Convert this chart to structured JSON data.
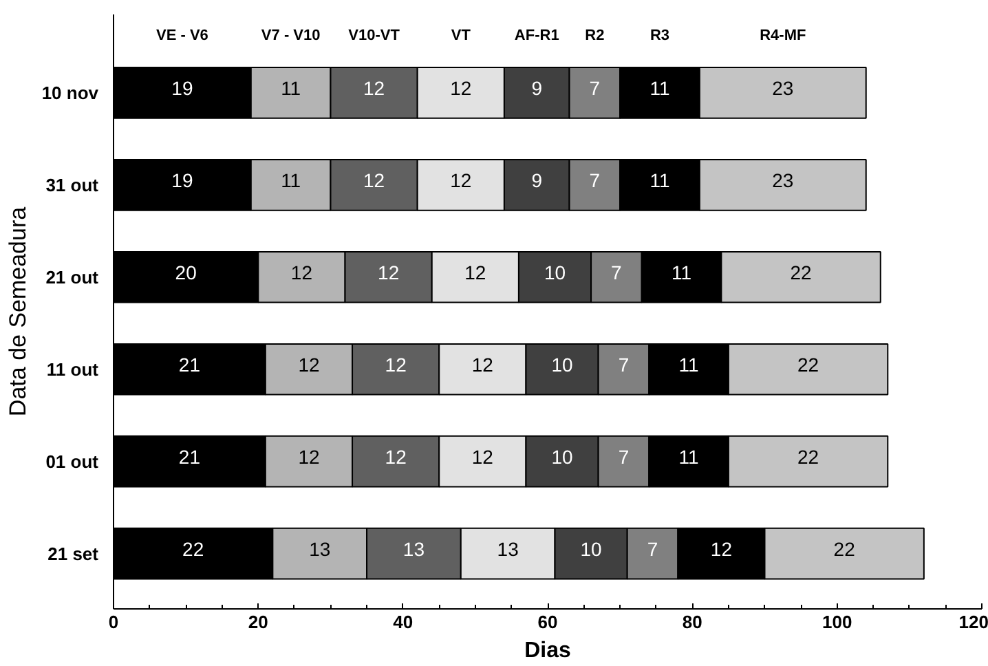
{
  "chart_data": {
    "type": "bar",
    "orientation": "horizontal",
    "stacked": true,
    "data_labels": true,
    "xlabel": "Dias",
    "ylabel": "Data de Semeadura",
    "categories": [
      "10 nov",
      "31 out",
      "21 out",
      "11 out",
      "01 out",
      "21 set"
    ],
    "xlim": [
      0,
      120
    ],
    "xticks": [
      0,
      20,
      40,
      60,
      80,
      100,
      120
    ],
    "grid": false,
    "series": [
      {
        "name": "VE - V6",
        "color": "#000000",
        "values": [
          19,
          19,
          20,
          21,
          21,
          22
        ]
      },
      {
        "name": "V7 - V10",
        "color": "#b4b4b4",
        "values": [
          11,
          11,
          12,
          12,
          12,
          13
        ]
      },
      {
        "name": "V10-VT",
        "color": "#606060",
        "values": [
          12,
          12,
          12,
          12,
          12,
          13
        ]
      },
      {
        "name": "VT",
        "color": "#e2e2e2",
        "values": [
          12,
          12,
          12,
          12,
          12,
          13
        ]
      },
      {
        "name": "AF-R1",
        "color": "#404040",
        "values": [
          9,
          9,
          10,
          10,
          10,
          10
        ]
      },
      {
        "name": "R2",
        "color": "#808080",
        "values": [
          7,
          7,
          7,
          7,
          7,
          7
        ]
      },
      {
        "name": "R3",
        "color": "#000000",
        "values": [
          11,
          11,
          11,
          11,
          11,
          12
        ]
      },
      {
        "name": "R4-MF",
        "color": "#c4c4c4",
        "values": [
          23,
          23,
          22,
          22,
          22,
          22
        ]
      }
    ]
  }
}
